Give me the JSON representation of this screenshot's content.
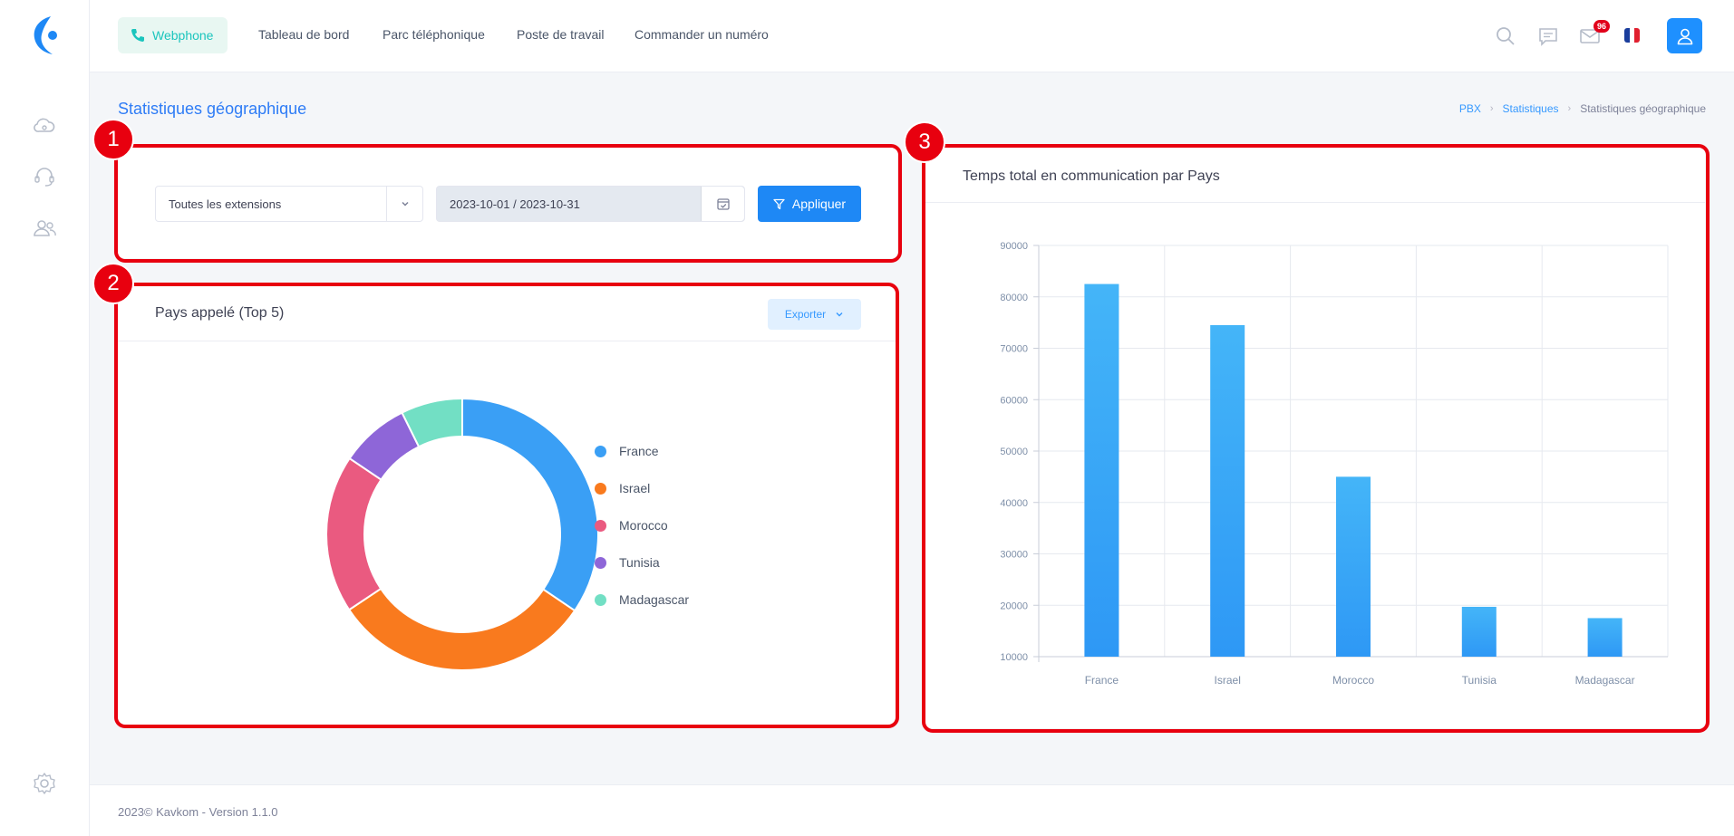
{
  "header": {
    "webphone_label": "Webphone",
    "nav": [
      "Tableau de bord",
      "Parc téléphonique",
      "Poste de travail",
      "Commander un numéro"
    ],
    "mail_badge": "96"
  },
  "page": {
    "title": "Statistiques géographique",
    "breadcrumb": [
      "PBX",
      "Statistiques",
      "Statistiques géographique"
    ]
  },
  "annotations": [
    "1",
    "2",
    "3"
  ],
  "filters": {
    "extension_select": "Toutes les extensions",
    "date_range": "2023-10-01 / 2023-10-31",
    "apply_label": "Appliquer"
  },
  "pie_card": {
    "title": "Pays appelé (Top 5)",
    "export_label": "Exporter"
  },
  "bar_card": {
    "title": "Temps total en communication par Pays"
  },
  "chart_data": [
    {
      "type": "pie",
      "donut": true,
      "categories": [
        "France",
        "Israel",
        "Morocco",
        "Tunisia",
        "Madagascar"
      ],
      "values": [
        82500,
        74500,
        45000,
        19700,
        17500
      ],
      "colors": [
        "#3a9ff5",
        "#f97a1e",
        "#ea5a80",
        "#8e66d8",
        "#72dfc4"
      ],
      "legend": "right"
    },
    {
      "type": "bar",
      "title": "Temps total en communication par Pays",
      "categories": [
        "France",
        "Israel",
        "Morocco",
        "Tunisia",
        "Madagascar"
      ],
      "values": [
        82500,
        74500,
        45000,
        19700,
        17500
      ],
      "yticks": [
        10000,
        20000,
        30000,
        40000,
        50000,
        60000,
        70000,
        80000,
        90000
      ],
      "ylim": [
        10000,
        90000
      ],
      "grid": true,
      "color": "#2e98f5"
    }
  ],
  "footer": {
    "text": "2023© Kavkom - Version 1.1.0"
  }
}
